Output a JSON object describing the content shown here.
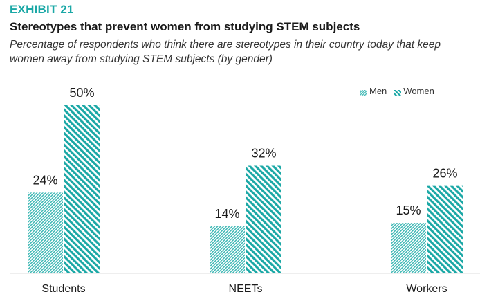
{
  "header": {
    "exhibit": "EXHIBIT 21",
    "title": "Stereotypes that prevent women from studying STEM subjects",
    "subtitle": "Percentage of respondents who think there are stereotypes in their country today that keep women away from studying STEM subjects (by gender)"
  },
  "colors": {
    "accent": "#1ba8a6",
    "men": "#3fb8b5",
    "women": "#1ba8a6"
  },
  "chart_data": {
    "type": "bar",
    "categories": [
      "Students",
      "NEETs",
      "Workers"
    ],
    "series": [
      {
        "name": "Men",
        "values": [
          24,
          14,
          15
        ],
        "labels": [
          "24%",
          "14%",
          "15%"
        ]
      },
      {
        "name": "Women",
        "values": [
          50,
          32,
          26
        ],
        "labels": [
          "50%",
          "32%",
          "26%"
        ]
      }
    ],
    "ylim": [
      0,
      50
    ],
    "grid": false,
    "legend": "top-right"
  }
}
